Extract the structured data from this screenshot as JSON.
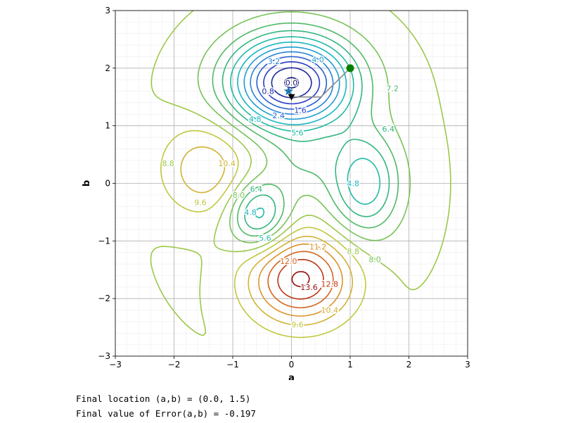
{
  "chart_data": {
    "type": "contour",
    "title": "",
    "xlabel": "a",
    "ylabel": "b",
    "xlim": [
      -3,
      3
    ],
    "ylim": [
      -3,
      3
    ],
    "xticks": [
      "−3",
      "−2",
      "−1",
      "0",
      "1",
      "2",
      "3"
    ],
    "yticks": [
      "−3",
      "−2",
      "−1",
      "0",
      "1",
      "2",
      "3"
    ],
    "grid": true,
    "minor_grid": true,
    "levels": [
      0.0,
      0.8,
      1.6,
      2.4,
      3.2,
      4.0,
      4.8,
      5.6,
      6.4,
      7.2,
      8.0,
      8.8,
      9.6,
      10.4,
      11.2,
      12.0,
      12.8,
      13.6
    ],
    "colormap": "nipy-like (blue → green → orange → red)",
    "contour_labels": [
      {
        "text": "0.0",
        "x": 0.0,
        "y": 1.75
      },
      {
        "text": "0.8",
        "x": -0.4,
        "y": 1.6
      },
      {
        "text": "1.6",
        "x": 0.15,
        "y": 1.27
      },
      {
        "text": "2.4",
        "x": -0.22,
        "y": 1.18
      },
      {
        "text": "3.2",
        "x": -0.3,
        "y": 2.12
      },
      {
        "text": "4.0",
        "x": 0.45,
        "y": 2.15
      },
      {
        "text": "4.8",
        "x": -0.62,
        "y": 1.12
      },
      {
        "text": "5.6",
        "x": 0.1,
        "y": 0.88
      },
      {
        "text": "7.2",
        "x": 1.72,
        "y": 1.65
      },
      {
        "text": "6.4",
        "x": 1.65,
        "y": 0.95
      },
      {
        "text": "4.8",
        "x": 1.05,
        "y": 0.0
      },
      {
        "text": "8.8",
        "x": -2.1,
        "y": 0.35
      },
      {
        "text": "10.4",
        "x": -1.1,
        "y": 0.35
      },
      {
        "text": "9.6",
        "x": -1.55,
        "y": -0.33
      },
      {
        "text": "8.0",
        "x": -0.9,
        "y": -0.2
      },
      {
        "text": "6.4",
        "x": -0.6,
        "y": -0.1
      },
      {
        "text": "4.8",
        "x": -0.7,
        "y": -0.5
      },
      {
        "text": "5.6",
        "x": -0.45,
        "y": -0.95
      },
      {
        "text": "11.2",
        "x": 0.45,
        "y": -1.1
      },
      {
        "text": "12.0",
        "x": -0.05,
        "y": -1.35
      },
      {
        "text": "12.8",
        "x": 0.65,
        "y": -1.75
      },
      {
        "text": "13.6",
        "x": 0.3,
        "y": -1.8
      },
      {
        "text": "10.4",
        "x": 0.65,
        "y": -2.2
      },
      {
        "text": "9.6",
        "x": 0.1,
        "y": -2.45
      },
      {
        "text": "8.8",
        "x": 1.05,
        "y": -1.18
      },
      {
        "text": "8.0",
        "x": 1.42,
        "y": -1.32
      }
    ],
    "path": [
      {
        "a": 1.0,
        "b": 2.0
      },
      {
        "a": 0.5,
        "b": 1.5
      },
      {
        "a": 0.0,
        "b": 1.5
      }
    ],
    "start_point": {
      "a": 1.0,
      "b": 2.0,
      "color": "#008000"
    },
    "end_point": {
      "a": 0.0,
      "b": 1.5,
      "color": "#000000"
    },
    "star_marker": {
      "a": -0.05,
      "b": 1.6,
      "color": "#1f77b4"
    }
  },
  "output": {
    "line1": "Final location (a,b) = (0.0, 1.5)",
    "line2": "Final value of Error(a,b) = -0.197"
  }
}
